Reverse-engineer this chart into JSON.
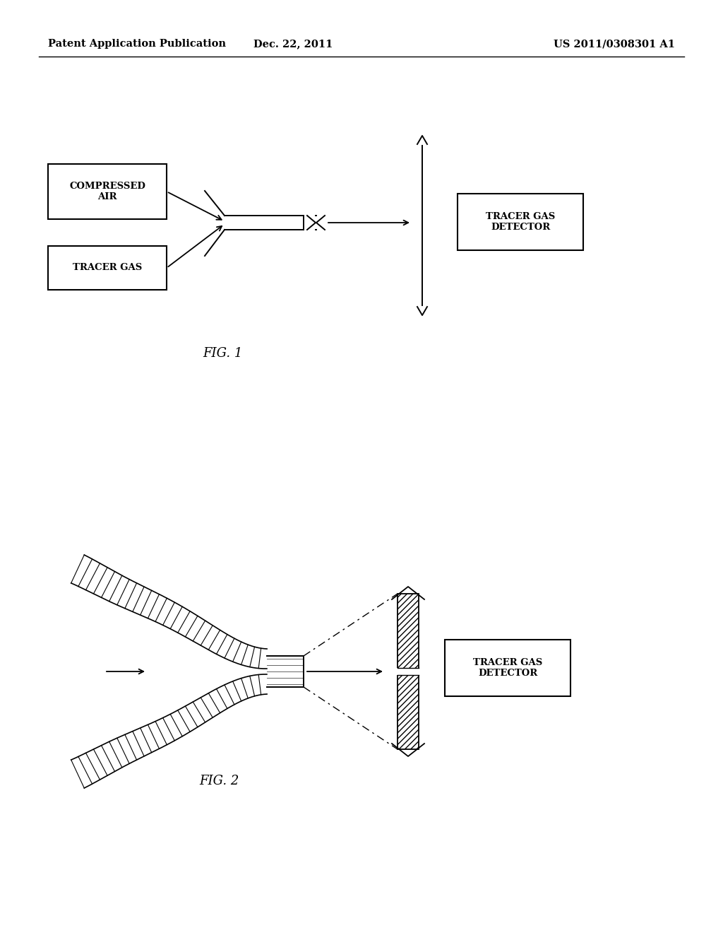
{
  "bg_color": "#ffffff",
  "header_left": "Patent Application Publication",
  "header_center": "Dec. 22, 2011",
  "header_right": "US 2011/0308301 A1",
  "fig1_label": "FIG. 1",
  "fig2_label": "FIG. 2",
  "box1_text": "COMPRESSED\nAIR",
  "box2_text": "TRACER GAS",
  "detector1_text": "TRACER GAS\nDETECTOR",
  "detector2_text": "TRACER GAS\nDETECTOR",
  "line_color": "#000000",
  "text_color": "#000000"
}
